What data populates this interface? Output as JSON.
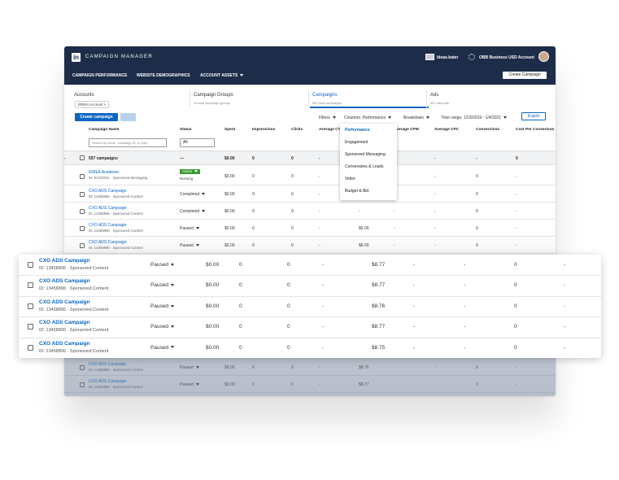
{
  "header": {
    "logo": "in",
    "title": "CAMPAIGN MANAGER",
    "user": "Ideas.bater",
    "account": "OBB Business USD Account"
  },
  "nav": {
    "links": [
      "CAMPAIGN PERFORMANCE",
      "WEBSITE DEMOGRAPHICS",
      "ACCOUNT ASSETS"
    ],
    "button": "Create Campaign"
  },
  "tabs": [
    {
      "title": "Accounts",
      "chip": "ERIEA Account ×"
    },
    {
      "title": "Campaign Groups",
      "subtitle": "10 total campaign groups"
    },
    {
      "title": "Campaigns",
      "subtitle": "557 total campaigns"
    },
    {
      "title": "Ads",
      "subtitle": "557 total ads"
    }
  ],
  "toolbar": {
    "create": "Create campaign",
    "filters": "Filters",
    "columns": "Columns: Performance",
    "breakdown": "Breakdown",
    "time_range": "Time range: 12/3/2019 - 1/4/2021",
    "export": "Export"
  },
  "table": {
    "columns": [
      "Campaign Name",
      "Status",
      "Spent",
      "Impressions",
      "Clicks",
      "Average CTR",
      "Average CPM",
      "Average CPC",
      "Conversions",
      "Cost Per Conversion"
    ],
    "search": "Search by name, campaign ID, or type",
    "filter": "All",
    "summary": [
      "557 campaigns",
      "—",
      "$0.00",
      "0",
      "0",
      "-",
      "-",
      "-",
      "0",
      "-"
    ],
    "rows": [
      {
        "name": "ERIEA Academic",
        "id": "ID: 9/13/2021 · Sponsored Messaging",
        "status": "Active",
        "substatus": "Running",
        "cells": [
          "$0.00",
          "0",
          "0",
          "-",
          "-",
          "-",
          "-",
          "0",
          "-"
        ]
      },
      {
        "name": "CXO ADS Campaign",
        "id": "ID: 13458896 · Sponsored Content",
        "status": "Completed",
        "cells": [
          "$0.00",
          "0",
          "0",
          "-",
          "-",
          "-",
          "-",
          "0",
          "-"
        ]
      },
      {
        "name": "CXO ADS Campaign",
        "id": "ID: 13458896 · Sponsored Content",
        "status": "Completed",
        "cells": [
          "$0.00",
          "0",
          "0",
          "-",
          "-",
          "-",
          "-",
          "0",
          "-"
        ]
      },
      {
        "name": "CXO ADS Campaign",
        "id": "ID: 13458896 · Sponsored Content",
        "status": "Paused",
        "cells": [
          "$0.00",
          "0",
          "0",
          "-",
          "$5.00",
          "-",
          "-",
          "0",
          "-"
        ]
      },
      {
        "name": "CXO ADS Campaign",
        "id": "ID: 13458896 · Sponsored Content",
        "status": "Paused",
        "cells": [
          "$0.00",
          "0",
          "0",
          "-",
          "$6.00",
          "-",
          "-",
          "0",
          "-"
        ]
      }
    ],
    "bottom_rows": [
      {
        "name": "CXO ADS Campaign",
        "id": "ID: 13458896 · Sponsored Content",
        "status": "Paused",
        "cells": [
          "$0.00",
          "0",
          "0",
          "-",
          "$8.76",
          "-",
          "-",
          "0",
          "-"
        ]
      },
      {
        "name": "CXO ADS Campaign",
        "id": "ID: 13458896 · Sponsored Content",
        "status": "Paused",
        "cells": [
          "$0.00",
          "0",
          "0",
          "-",
          "$8.77",
          "-",
          "-",
          "0",
          "-"
        ]
      }
    ]
  },
  "columns_menu": [
    "Performance",
    "Engagement",
    "Sponsored Messaging",
    "Conversions & Leads",
    "Video",
    "Budget & Bid"
  ],
  "highlight_rows": [
    {
      "name": "CXO ADS Campaign",
      "id": "ID: 13458896 · Sponsored Content",
      "status": "Paused",
      "cells": [
        "$0.00",
        "0",
        "0",
        "-",
        "$8.77",
        "-",
        "-",
        "0",
        "-"
      ]
    },
    {
      "name": "CXO ADS Campaign",
      "id": "ID: 13458896 · Sponsored Content",
      "status": "Paused",
      "cells": [
        "$0.00",
        "0",
        "0",
        "-",
        "$8.77",
        "-",
        "-",
        "0",
        "-"
      ]
    },
    {
      "name": "CXO ADS Campaign",
      "id": "ID: 13458896 · Sponsored Content",
      "status": "Paused",
      "cells": [
        "$0.00",
        "0",
        "0",
        "-",
        "$8.76",
        "-",
        "-",
        "0",
        "-"
      ]
    },
    {
      "name": "CXO ADS Campaign",
      "id": "ID: 13458896 · Sponsored Content",
      "status": "Paused",
      "cells": [
        "$0.00",
        "0",
        "0",
        "-",
        "$8.77",
        "-",
        "-",
        "0",
        "-"
      ]
    },
    {
      "name": "CXO ADS Campaign",
      "id": "ID: 13458896 · Sponsored Content",
      "status": "Paused",
      "cells": [
        "$0.00",
        "0",
        "0",
        "-",
        "$8.75",
        "-",
        "-",
        "0",
        "-"
      ]
    }
  ]
}
